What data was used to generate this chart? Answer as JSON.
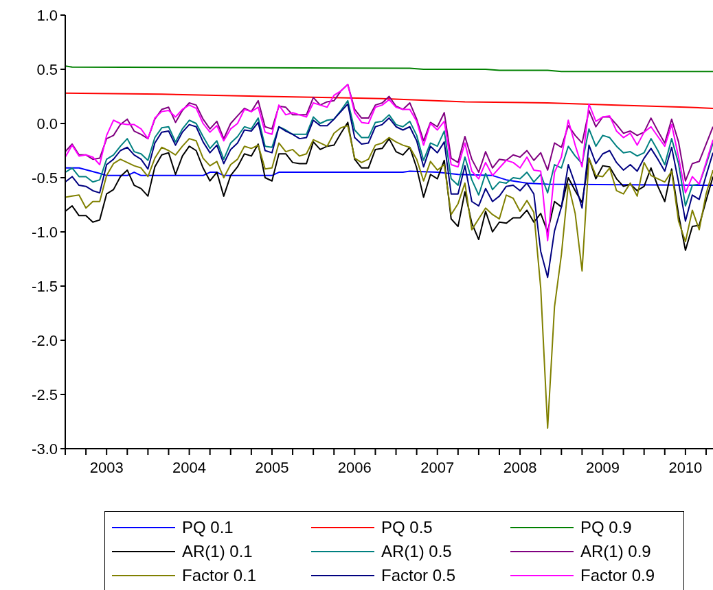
{
  "chart_data": {
    "type": "line",
    "legend": "bottom",
    "marker": "none",
    "line_style": "solid",
    "ylim": [
      -3,
      1
    ],
    "yticks": [
      {
        "value": 1,
        "label": "1.0"
      },
      {
        "value": 0.5,
        "label": "0.5"
      },
      {
        "value": 0,
        "label": "0.0"
      },
      {
        "value": -0.5,
        "label": "-0.5"
      },
      {
        "value": -1,
        "label": "-1.0"
      },
      {
        "value": -1.5,
        "label": "-1.5"
      },
      {
        "value": -2,
        "label": "-2.0"
      },
      {
        "value": -2.5,
        "label": "-2.5"
      },
      {
        "value": -3,
        "label": "-3.0"
      }
    ],
    "xlim": [
      "2003-01",
      "2010-11"
    ],
    "xticks": [
      {
        "value": "2003-01",
        "label": null
      },
      {
        "value": "2003-04",
        "label": null
      },
      {
        "value": "2003-07",
        "label": "2003"
      },
      {
        "value": "2003-10",
        "label": null
      },
      {
        "value": "2004-01",
        "label": null
      },
      {
        "value": "2004-04",
        "label": null
      },
      {
        "value": "2004-07",
        "label": "2004"
      },
      {
        "value": "2004-10",
        "label": null
      },
      {
        "value": "2005-01",
        "label": null
      },
      {
        "value": "2005-04",
        "label": null
      },
      {
        "value": "2005-07",
        "label": "2005"
      },
      {
        "value": "2005-10",
        "label": null
      },
      {
        "value": "2006-01",
        "label": null
      },
      {
        "value": "2006-04",
        "label": null
      },
      {
        "value": "2006-07",
        "label": "2006"
      },
      {
        "value": "2006-10",
        "label": null
      },
      {
        "value": "2007-01",
        "label": null
      },
      {
        "value": "2007-04",
        "label": null
      },
      {
        "value": "2007-07",
        "label": "2007"
      },
      {
        "value": "2007-10",
        "label": null
      },
      {
        "value": "2008-01",
        "label": null
      },
      {
        "value": "2008-04",
        "label": null
      },
      {
        "value": "2008-07",
        "label": "2008"
      },
      {
        "value": "2008-10",
        "label": null
      },
      {
        "value": "2009-01",
        "label": null
      },
      {
        "value": "2009-04",
        "label": null
      },
      {
        "value": "2009-07",
        "label": "2009"
      },
      {
        "value": "2009-10",
        "label": null
      },
      {
        "value": "2010-01",
        "label": null
      },
      {
        "value": "2010-04",
        "label": null
      },
      {
        "value": "2010-07",
        "label": "2010"
      },
      {
        "value": "2010-10",
        "label": null
      }
    ],
    "x": [
      "2003-01",
      "2003-02",
      "2003-03",
      "2003-04",
      "2003-05",
      "2003-06",
      "2003-07",
      "2003-08",
      "2003-09",
      "2003-10",
      "2003-11",
      "2003-12",
      "2004-01",
      "2004-02",
      "2004-03",
      "2004-04",
      "2004-05",
      "2004-06",
      "2004-07",
      "2004-08",
      "2004-09",
      "2004-10",
      "2004-11",
      "2004-12",
      "2005-01",
      "2005-02",
      "2005-03",
      "2005-04",
      "2005-05",
      "2005-06",
      "2005-07",
      "2005-08",
      "2005-09",
      "2005-10",
      "2005-11",
      "2005-12",
      "2006-01",
      "2006-02",
      "2006-03",
      "2006-04",
      "2006-05",
      "2006-06",
      "2006-07",
      "2006-08",
      "2006-09",
      "2006-10",
      "2006-11",
      "2006-12",
      "2007-01",
      "2007-02",
      "2007-03",
      "2007-04",
      "2007-05",
      "2007-06",
      "2007-07",
      "2007-08",
      "2007-09",
      "2007-10",
      "2007-11",
      "2007-12",
      "2008-01",
      "2008-02",
      "2008-03",
      "2008-04",
      "2008-05",
      "2008-06",
      "2008-07",
      "2008-08",
      "2008-09",
      "2008-10",
      "2008-11",
      "2008-12",
      "2009-01",
      "2009-02",
      "2009-03",
      "2009-04",
      "2009-05",
      "2009-06",
      "2009-07",
      "2009-08",
      "2009-09",
      "2009-10",
      "2009-11",
      "2009-12",
      "2010-01",
      "2010-02",
      "2010-03",
      "2010-04",
      "2010-05",
      "2010-06",
      "2010-07",
      "2010-08",
      "2010-09",
      "2010-10",
      "2010-11"
    ],
    "series": [
      {
        "name": "PQ 0.1",
        "color": "#0000ff",
        "x": [
          "2003-01",
          "2003-03",
          "2003-06",
          "2003-07",
          "2003-10",
          "2003-11",
          "2003-12",
          "2004-09",
          "2004-10",
          "2004-11",
          "2004-12",
          "2005-07",
          "2005-08",
          "2007-02",
          "2007-03",
          "2007-07",
          "2007-10",
          "2008-03",
          "2008-05",
          "2008-08",
          "2008-11",
          "2010-11"
        ],
        "values": [
          -0.41,
          -0.41,
          -0.46,
          -0.48,
          -0.48,
          -0.45,
          -0.48,
          -0.48,
          -0.45,
          -0.45,
          -0.48,
          -0.48,
          -0.45,
          -0.45,
          -0.44,
          -0.45,
          -0.47,
          -0.48,
          -0.52,
          -0.55,
          -0.56,
          -0.57
        ]
      },
      {
        "name": "PQ 0.5",
        "color": "#ff0000",
        "x": [
          "2003-01",
          "2004-03",
          "2005-06",
          "2006-11",
          "2007-11",
          "2008-11",
          "2009-09",
          "2010-07",
          "2010-11"
        ],
        "values": [
          0.28,
          0.27,
          0.25,
          0.23,
          0.2,
          0.19,
          0.17,
          0.15,
          0.14
        ]
      },
      {
        "name": "PQ 0.9",
        "color": "#008000",
        "x": [
          "2003-01",
          "2003-02",
          "2007-03",
          "2007-05",
          "2008-02",
          "2008-04",
          "2008-11",
          "2009-01",
          "2010-11"
        ],
        "values": [
          0.53,
          0.52,
          0.51,
          0.5,
          0.5,
          0.49,
          0.49,
          0.48,
          0.48
        ]
      },
      {
        "name": "AR(1) 0.1",
        "color": "#000000",
        "values": [
          -0.81,
          -0.76,
          -0.85,
          -0.85,
          -0.91,
          -0.89,
          -0.65,
          -0.61,
          -0.49,
          -0.43,
          -0.57,
          -0.6,
          -0.67,
          -0.4,
          -0.29,
          -0.27,
          -0.47,
          -0.3,
          -0.21,
          -0.25,
          -0.41,
          -0.53,
          -0.45,
          -0.67,
          -0.48,
          -0.4,
          -0.28,
          -0.3,
          -0.19,
          -0.5,
          -0.53,
          -0.28,
          -0.28,
          -0.36,
          -0.37,
          -0.37,
          -0.17,
          -0.24,
          -0.21,
          -0.2,
          -0.09,
          0.01,
          -0.33,
          -0.41,
          -0.41,
          -0.24,
          -0.23,
          -0.14,
          -0.26,
          -0.29,
          -0.22,
          -0.41,
          -0.68,
          -0.47,
          -0.51,
          -0.34,
          -0.88,
          -0.95,
          -0.63,
          -0.92,
          -1.07,
          -0.81,
          -1,
          -0.91,
          -0.92,
          -0.87,
          -0.87,
          -0.8,
          -0.91,
          -0.83,
          -1,
          -0.72,
          -0.77,
          -0.5,
          -0.62,
          -0.73,
          -0.32,
          -0.51,
          -0.39,
          -0.4,
          -0.51,
          -0.58,
          -0.56,
          -0.62,
          -0.58,
          -0.41,
          -0.58,
          -0.72,
          -0.42,
          -0.84,
          -1.17,
          -0.95,
          -0.94,
          -0.71,
          -0.49
        ]
      },
      {
        "name": "AR(1) 0.5",
        "color": "#008080",
        "values": [
          -0.45,
          -0.41,
          -0.49,
          -0.49,
          -0.54,
          -0.52,
          -0.33,
          -0.29,
          -0.21,
          -0.14,
          -0.26,
          -0.28,
          -0.34,
          -0.13,
          -0.04,
          -0.03,
          -0.17,
          -0.05,
          0.03,
          0,
          -0.12,
          -0.23,
          -0.16,
          -0.33,
          -0.18,
          -0.12,
          -0.03,
          -0.05,
          0.05,
          -0.21,
          -0.22,
          -0.03,
          -0.06,
          -0.1,
          -0.1,
          -0.1,
          0.06,
          0,
          0.03,
          0.04,
          0.12,
          0.21,
          -0.06,
          -0.13,
          -0.13,
          0.01,
          0.02,
          0.08,
          -0.01,
          -0.03,
          0.02,
          -0.11,
          -0.34,
          -0.18,
          -0.21,
          -0.07,
          -0.51,
          -0.57,
          -0.31,
          -0.52,
          -0.66,
          -0.46,
          -0.61,
          -0.54,
          -0.55,
          -0.5,
          -0.51,
          -0.45,
          -0.54,
          -0.47,
          -0.64,
          -0.38,
          -0.41,
          -0.21,
          -0.3,
          -0.37,
          -0.05,
          -0.21,
          -0.11,
          -0.13,
          -0.21,
          -0.27,
          -0.26,
          -0.3,
          -0.27,
          -0.14,
          -0.25,
          -0.38,
          -0.14,
          -0.37,
          -0.76,
          -0.57,
          -0.56,
          -0.38,
          -0.18
        ]
      },
      {
        "name": "AR(1) 0.9",
        "color": "#800080",
        "values": [
          -0.26,
          -0.19,
          -0.29,
          -0.29,
          -0.33,
          -0.32,
          -0.14,
          -0.11,
          -0.01,
          0.04,
          -0.07,
          -0.1,
          -0.14,
          0.04,
          0.13,
          0.15,
          0.01,
          0.12,
          0.19,
          0.17,
          0.04,
          -0.05,
          0.02,
          -0.14,
          0,
          0.07,
          0.14,
          0.11,
          0.21,
          -0.03,
          -0.05,
          0.16,
          0.15,
          0.08,
          0.08,
          0.08,
          0.24,
          0.17,
          0.2,
          0.21,
          0.3,
          0.36,
          0.13,
          0.05,
          0.05,
          0.17,
          0.19,
          0.25,
          0.16,
          0.13,
          0.19,
          0.04,
          -0.16,
          0.01,
          -0.03,
          0.1,
          -0.32,
          -0.36,
          -0.12,
          -0.33,
          -0.45,
          -0.26,
          -0.41,
          -0.33,
          -0.34,
          -0.29,
          -0.31,
          -0.25,
          -0.34,
          -0.27,
          -0.43,
          -0.18,
          -0.22,
          -0.02,
          -0.11,
          -0.18,
          0.12,
          -0.03,
          0.06,
          0.06,
          -0.01,
          -0.09,
          -0.07,
          -0.11,
          -0.08,
          0.05,
          -0.07,
          -0.18,
          0.04,
          -0.17,
          -0.53,
          -0.37,
          -0.35,
          -0.19,
          -0.03
        ]
      },
      {
        "name": "Factor 0.1",
        "color": "#808000",
        "values": [
          -0.68,
          -0.67,
          -0.66,
          -0.78,
          -0.72,
          -0.72,
          -0.48,
          -0.37,
          -0.33,
          -0.36,
          -0.39,
          -0.41,
          -0.49,
          -0.32,
          -0.22,
          -0.25,
          -0.29,
          -0.21,
          -0.14,
          -0.16,
          -0.32,
          -0.39,
          -0.35,
          -0.5,
          -0.38,
          -0.33,
          -0.21,
          -0.23,
          -0.2,
          -0.42,
          -0.41,
          -0.18,
          -0.26,
          -0.24,
          -0.3,
          -0.28,
          -0.15,
          -0.18,
          -0.21,
          -0.09,
          -0.04,
          -0.02,
          -0.32,
          -0.36,
          -0.33,
          -0.2,
          -0.18,
          -0.13,
          -0.17,
          -0.2,
          -0.22,
          -0.33,
          -0.53,
          -0.35,
          -0.43,
          -0.38,
          -0.84,
          -0.74,
          -0.55,
          -0.98,
          -0.88,
          -0.78,
          -0.84,
          -0.88,
          -0.66,
          -0.69,
          -0.81,
          -0.71,
          -0.82,
          -1.52,
          -2.81,
          -1.69,
          -1.21,
          -0.56,
          -0.83,
          -1.36,
          -0.32,
          -0.48,
          -0.49,
          -0.41,
          -0.62,
          -0.65,
          -0.55,
          -0.67,
          -0.36,
          -0.48,
          -0.51,
          -0.54,
          -0.44,
          -0.9,
          -1.09,
          -0.8,
          -0.98,
          -0.65,
          -0.43
        ]
      },
      {
        "name": "Factor 0.5",
        "color": "#000080",
        "values": [
          -0.54,
          -0.49,
          -0.57,
          -0.58,
          -0.62,
          -0.64,
          -0.38,
          -0.33,
          -0.25,
          -0.22,
          -0.29,
          -0.33,
          -0.42,
          -0.18,
          -0.08,
          -0.07,
          -0.2,
          -0.08,
          -0.01,
          -0.03,
          -0.17,
          -0.27,
          -0.2,
          -0.37,
          -0.24,
          -0.18,
          -0.06,
          -0.07,
          0.01,
          -0.25,
          -0.27,
          -0.03,
          -0.07,
          -0.1,
          -0.14,
          -0.13,
          0.03,
          -0.02,
          -0.02,
          0.04,
          0.11,
          0.18,
          -0.13,
          -0.19,
          -0.18,
          -0.03,
          -0.01,
          0.05,
          -0.03,
          -0.06,
          -0.03,
          -0.16,
          -0.4,
          -0.21,
          -0.27,
          -0.17,
          -0.65,
          -0.65,
          -0.39,
          -0.72,
          -0.76,
          -0.6,
          -0.72,
          -0.67,
          -0.58,
          -0.57,
          -0.62,
          -0.55,
          -0.65,
          -1.18,
          -1.42,
          -0.99,
          -0.77,
          -0.38,
          -0.56,
          -0.78,
          -0.2,
          -0.37,
          -0.28,
          -0.25,
          -0.36,
          -0.43,
          -0.38,
          -0.44,
          -0.32,
          -0.23,
          -0.33,
          -0.44,
          -0.22,
          -0.54,
          -0.9,
          -0.66,
          -0.7,
          -0.48,
          -0.27
        ]
      },
      {
        "name": "Factor 0.9",
        "color": "#ff00ff",
        "values": [
          -0.31,
          -0.2,
          -0.3,
          -0.29,
          -0.31,
          -0.38,
          -0.11,
          0.03,
          0,
          -0.01,
          -0.01,
          -0.05,
          -0.14,
          0.05,
          0.11,
          0.12,
          0.06,
          0.13,
          0.17,
          0.14,
          0,
          -0.08,
          -0.02,
          -0.16,
          -0.05,
          0,
          0.13,
          0.11,
          0.15,
          -0.08,
          -0.1,
          0.17,
          0.08,
          0.1,
          0.08,
          0.06,
          0.19,
          0.17,
          0.15,
          0.26,
          0.3,
          0.36,
          0.1,
          0.01,
          0,
          0.15,
          0.17,
          0.22,
          0.15,
          0.13,
          0.13,
          0.02,
          -0.2,
          0,
          -0.06,
          0.02,
          -0.38,
          -0.4,
          -0.18,
          -0.44,
          -0.51,
          -0.36,
          -0.48,
          -0.41,
          -0.34,
          -0.36,
          -0.41,
          -0.31,
          -0.43,
          -0.44,
          -1.08,
          -0.45,
          -0.31,
          0.03,
          -0.2,
          -0.4,
          0.18,
          0.02,
          0.06,
          0.07,
          -0.07,
          -0.13,
          -0.09,
          -0.2,
          -0.08,
          -0.03,
          -0.12,
          -0.21,
          -0.01,
          -0.31,
          -0.64,
          -0.49,
          -0.56,
          -0.36,
          -0.15
        ]
      }
    ]
  }
}
